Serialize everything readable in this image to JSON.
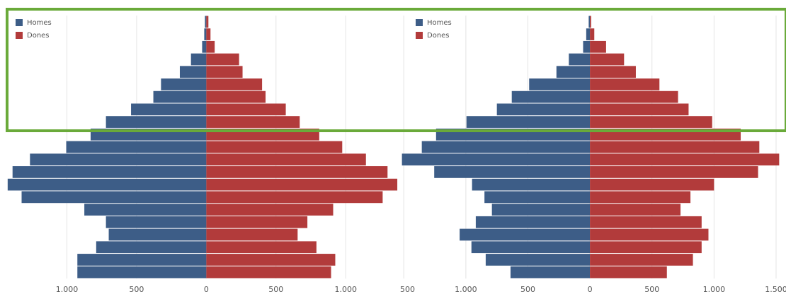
{
  "chart_data": [
    {
      "type": "pyramid",
      "categories": [
        null,
        null,
        null,
        null,
        null,
        null,
        null,
        null,
        null,
        null,
        null,
        null,
        null,
        null,
        null,
        null,
        null,
        null,
        null,
        null,
        null
      ],
      "series": [
        {
          "name": "Homes",
          "color": "#3d5d87",
          "side": "left",
          "values": [
            10,
            15,
            30,
            110,
            190,
            325,
            380,
            540,
            720,
            830,
            1005,
            1265,
            1390,
            1425,
            1325,
            875,
            720,
            700,
            790,
            925,
            925
          ]
        },
        {
          "name": "Dones",
          "color": "#b23b3b",
          "side": "right",
          "values": [
            15,
            30,
            60,
            235,
            260,
            400,
            425,
            570,
            670,
            810,
            975,
            1145,
            1300,
            1370,
            1265,
            910,
            725,
            655,
            790,
            925,
            895
          ]
        }
      ],
      "xlim": [
        -1480,
        1390
      ],
      "xticks": [
        {
          "value": -1000,
          "label": "1.000"
        },
        {
          "value": -500,
          "label": "500"
        },
        0,
        500,
        {
          "value": 1000,
          "label": "1.000"
        }
      ],
      "grid": true,
      "legend": "top-left"
    },
    {
      "type": "pyramid",
      "categories": [
        null,
        null,
        null,
        null,
        null,
        null,
        null,
        null,
        null,
        null,
        null,
        null,
        null,
        null,
        null,
        null,
        null,
        null,
        null,
        null,
        null
      ],
      "series": [
        {
          "name": "Homes",
          "color": "#3d5d87",
          "side": "left",
          "values": [
            10,
            30,
            55,
            170,
            270,
            490,
            630,
            750,
            995,
            1240,
            1355,
            1515,
            1255,
            950,
            850,
            790,
            920,
            1050,
            955,
            840,
            640
          ]
        },
        {
          "name": "Dones",
          "color": "#b23b3b",
          "side": "right",
          "values": [
            10,
            35,
            130,
            275,
            370,
            560,
            710,
            795,
            985,
            1215,
            1365,
            1525,
            1355,
            1000,
            810,
            730,
            900,
            955,
            900,
            830,
            620
          ]
        }
      ],
      "xlim": [
        -1530,
        1580
      ],
      "xticks": [
        {
          "value": -1500,
          "label": "1.500"
        },
        {
          "value": -1000,
          "label": "1.000"
        },
        {
          "value": -500,
          "label": "500"
        },
        0,
        500,
        {
          "value": 1000,
          "label": "1.000"
        },
        {
          "value": 1500,
          "label": "1.500"
        }
      ],
      "grid": true,
      "legend": "top-left"
    }
  ]
}
